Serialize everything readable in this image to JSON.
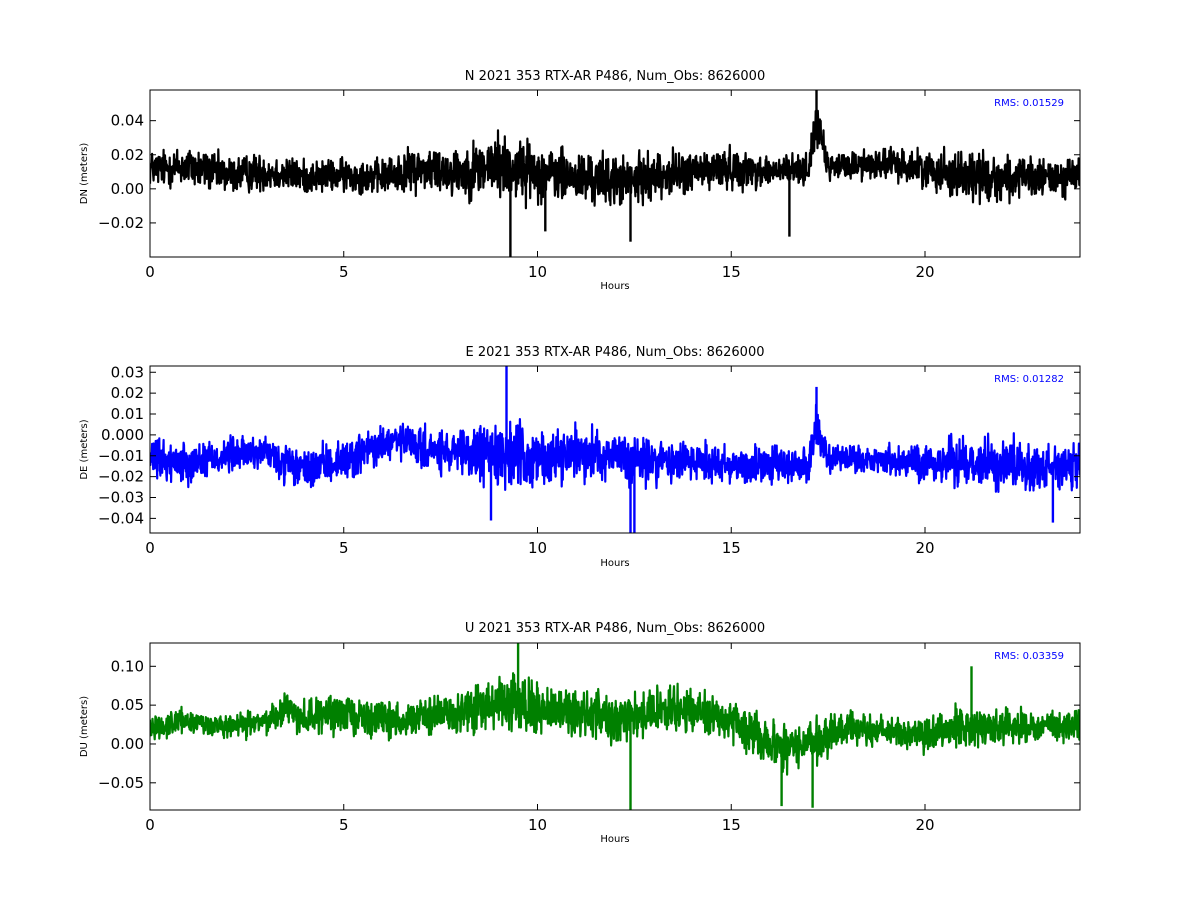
{
  "chart_data": [
    {
      "type": "line",
      "title": "N 2021 353 RTX-AR  P486, Num_Obs: 8626000",
      "xlabel": "Hours",
      "ylabel": "DN (meters)",
      "xlim": [
        0,
        24
      ],
      "ylim": [
        -0.04,
        0.058
      ],
      "xticks": [
        0,
        5,
        10,
        15,
        20
      ],
      "yticks": [
        -0.02,
        0.0,
        0.02,
        0.04
      ],
      "ytick_labels": [
        "−0.02",
        "0.00",
        "0.02",
        "0.04"
      ],
      "rms_label": "RMS:  0.01529",
      "grid": false,
      "color": "#000000",
      "series": [
        {
          "x": [
            0,
            1,
            2,
            3,
            4,
            5,
            6,
            7,
            8,
            9,
            9.3,
            10,
            11,
            12,
            12.4,
            13,
            14,
            15,
            16,
            17,
            17.2,
            17.5,
            18,
            19,
            20,
            21,
            22,
            23,
            24
          ],
          "center": [
            0.012,
            0.013,
            0.008,
            0.01,
            0.007,
            0.008,
            0.007,
            0.012,
            0.01,
            0.014,
            0.012,
            0.01,
            0.006,
            0.005,
            0.004,
            0.008,
            0.01,
            0.012,
            0.01,
            0.012,
            0.04,
            0.012,
            0.014,
            0.015,
            0.012,
            0.008,
            0.006,
            0.006,
            0.008
          ],
          "amplitude": [
            0.014,
            0.017,
            0.015,
            0.015,
            0.013,
            0.013,
            0.014,
            0.018,
            0.02,
            0.026,
            0.026,
            0.022,
            0.021,
            0.02,
            0.02,
            0.018,
            0.017,
            0.016,
            0.013,
            0.012,
            0.018,
            0.01,
            0.012,
            0.013,
            0.014,
            0.022,
            0.018,
            0.015,
            0.016
          ],
          "spikes": [
            [
              9.3,
              -0.04
            ],
            [
              12.4,
              -0.031
            ],
            [
              17.2,
              0.058
            ],
            [
              10.2,
              -0.025
            ],
            [
              16.5,
              -0.028
            ]
          ]
        }
      ]
    },
    {
      "type": "line",
      "title": "E 2021 353 RTX-AR  P486, Num_Obs: 8626000",
      "xlabel": "Hours",
      "ylabel": "DE (meters)",
      "xlim": [
        0,
        24
      ],
      "ylim": [
        -0.047,
        0.033
      ],
      "xticks": [
        0,
        5,
        10,
        15,
        20
      ],
      "yticks": [
        -0.04,
        -0.03,
        -0.02,
        -0.01,
        0.0,
        0.01,
        0.02,
        0.03
      ],
      "ytick_labels": [
        "−0.04",
        "−0.03",
        "−0.02",
        "−0.01",
        "0.000",
        "0.01",
        "0.02",
        "0.03"
      ],
      "rms_label": "RMS:  0.01282",
      "grid": false,
      "color": "#0000ff",
      "series": [
        {
          "x": [
            0,
            1,
            2,
            3,
            3.3,
            4,
            5,
            6,
            6.5,
            7,
            8,
            9,
            9.3,
            10,
            11,
            12,
            12.4,
            13,
            14,
            15,
            16,
            17,
            17.2,
            17.5,
            18,
            19,
            20,
            21,
            22,
            23,
            24
          ],
          "center": [
            -0.012,
            -0.013,
            -0.01,
            -0.008,
            -0.013,
            -0.017,
            -0.012,
            -0.005,
            -0.003,
            -0.007,
            -0.01,
            -0.008,
            -0.01,
            -0.012,
            -0.008,
            -0.01,
            -0.012,
            -0.013,
            -0.012,
            -0.014,
            -0.015,
            -0.014,
            0.005,
            -0.012,
            -0.012,
            -0.012,
            -0.014,
            -0.012,
            -0.014,
            -0.015,
            -0.016
          ],
          "amplitude": [
            0.013,
            0.013,
            0.012,
            0.01,
            0.013,
            0.012,
            0.013,
            0.014,
            0.012,
            0.013,
            0.015,
            0.022,
            0.022,
            0.018,
            0.016,
            0.016,
            0.017,
            0.016,
            0.014,
            0.014,
            0.013,
            0.012,
            0.016,
            0.009,
            0.009,
            0.01,
            0.012,
            0.016,
            0.016,
            0.015,
            0.015
          ],
          "spikes": [
            [
              9.2,
              0.033
            ],
            [
              12.4,
              -0.047
            ],
            [
              12.5,
              -0.047
            ],
            [
              17.2,
              0.023
            ],
            [
              8.8,
              -0.041
            ],
            [
              23.3,
              -0.042
            ]
          ]
        }
      ]
    },
    {
      "type": "line",
      "title": "U 2021 353 RTX-AR  P486, Num_Obs: 8626000",
      "xlabel": "Hours",
      "ylabel": "DU (meters)",
      "xlim": [
        0,
        24
      ],
      "ylim": [
        -0.085,
        0.13
      ],
      "xticks": [
        0,
        5,
        10,
        15,
        20
      ],
      "yticks": [
        -0.05,
        0.0,
        0.05,
        0.1
      ],
      "ytick_labels": [
        "−0.05",
        "0.00",
        "0.05",
        "0.10"
      ],
      "rms_label": "RMS:  0.03359",
      "grid": false,
      "color": "#008000",
      "series": [
        {
          "x": [
            0,
            1,
            2,
            3,
            3.5,
            4,
            5,
            6,
            7,
            8,
            9,
            9.5,
            10,
            11,
            12,
            13,
            14,
            15,
            16,
            16.5,
            17,
            17.2,
            18,
            19,
            20,
            21,
            22,
            23,
            24
          ],
          "center": [
            0.022,
            0.03,
            0.02,
            0.03,
            0.045,
            0.035,
            0.04,
            0.03,
            0.035,
            0.04,
            0.05,
            0.05,
            0.045,
            0.04,
            0.035,
            0.04,
            0.045,
            0.03,
            0.0,
            -0.005,
            0.005,
            0.0,
            0.02,
            0.015,
            0.01,
            0.025,
            0.02,
            0.02,
            0.025
          ],
          "amplitude": [
            0.02,
            0.022,
            0.02,
            0.022,
            0.03,
            0.03,
            0.032,
            0.03,
            0.032,
            0.035,
            0.045,
            0.05,
            0.04,
            0.04,
            0.042,
            0.04,
            0.038,
            0.035,
            0.038,
            0.04,
            0.032,
            0.04,
            0.03,
            0.028,
            0.028,
            0.035,
            0.03,
            0.03,
            0.03
          ],
          "spikes": [
            [
              9.5,
              0.13
            ],
            [
              12.4,
              -0.085
            ],
            [
              16.3,
              -0.08
            ],
            [
              17.1,
              -0.082
            ],
            [
              21.2,
              0.1
            ]
          ]
        }
      ]
    }
  ]
}
